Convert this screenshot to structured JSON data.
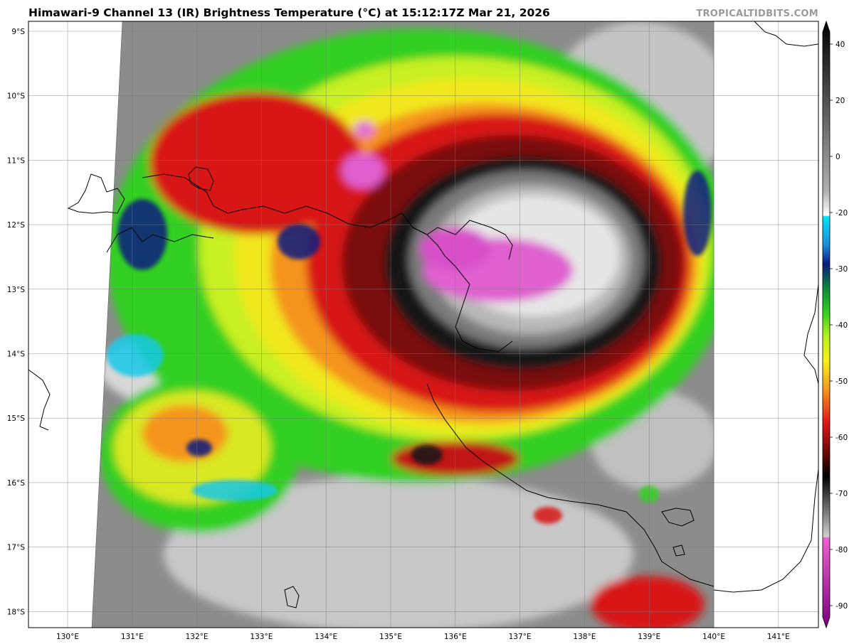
{
  "title": "Himawari-9 Channel 13 (IR) Brightness Temperature (°C) at 15:12:17Z Mar 21, 2026",
  "credit": "TROPICALTIDBITS.COM",
  "map": {
    "lat_labels": [
      "9°S",
      "10°S",
      "11°S",
      "12°S",
      "13°S",
      "14°S",
      "15°S",
      "16°S",
      "17°S",
      "18°S"
    ],
    "lon_labels": [
      "130°E",
      "131°E",
      "132°E",
      "133°E",
      "134°E",
      "135°E",
      "136°E",
      "137°E",
      "138°E",
      "139°E",
      "140°E",
      "141°E"
    ],
    "colors": {
      "clear_gray": "#8c8c8c",
      "light_gray": "#d4d4d4",
      "green": "#38d21e",
      "yellow": "#f2ea1a",
      "orange": "#f5941c",
      "red": "#d81818",
      "dark_red": "#7a0a0a",
      "black": "#141414",
      "magenta": "#e060d0",
      "cyan": "#18c8e8",
      "navy": "#101a80",
      "coast": "#000000"
    }
  },
  "colorbar": {
    "tick_labels": [
      "40",
      "20",
      "0",
      "-20",
      "-30",
      "-40",
      "-50",
      "-60",
      "-70",
      "-80",
      "-90"
    ],
    "units": "°C"
  }
}
